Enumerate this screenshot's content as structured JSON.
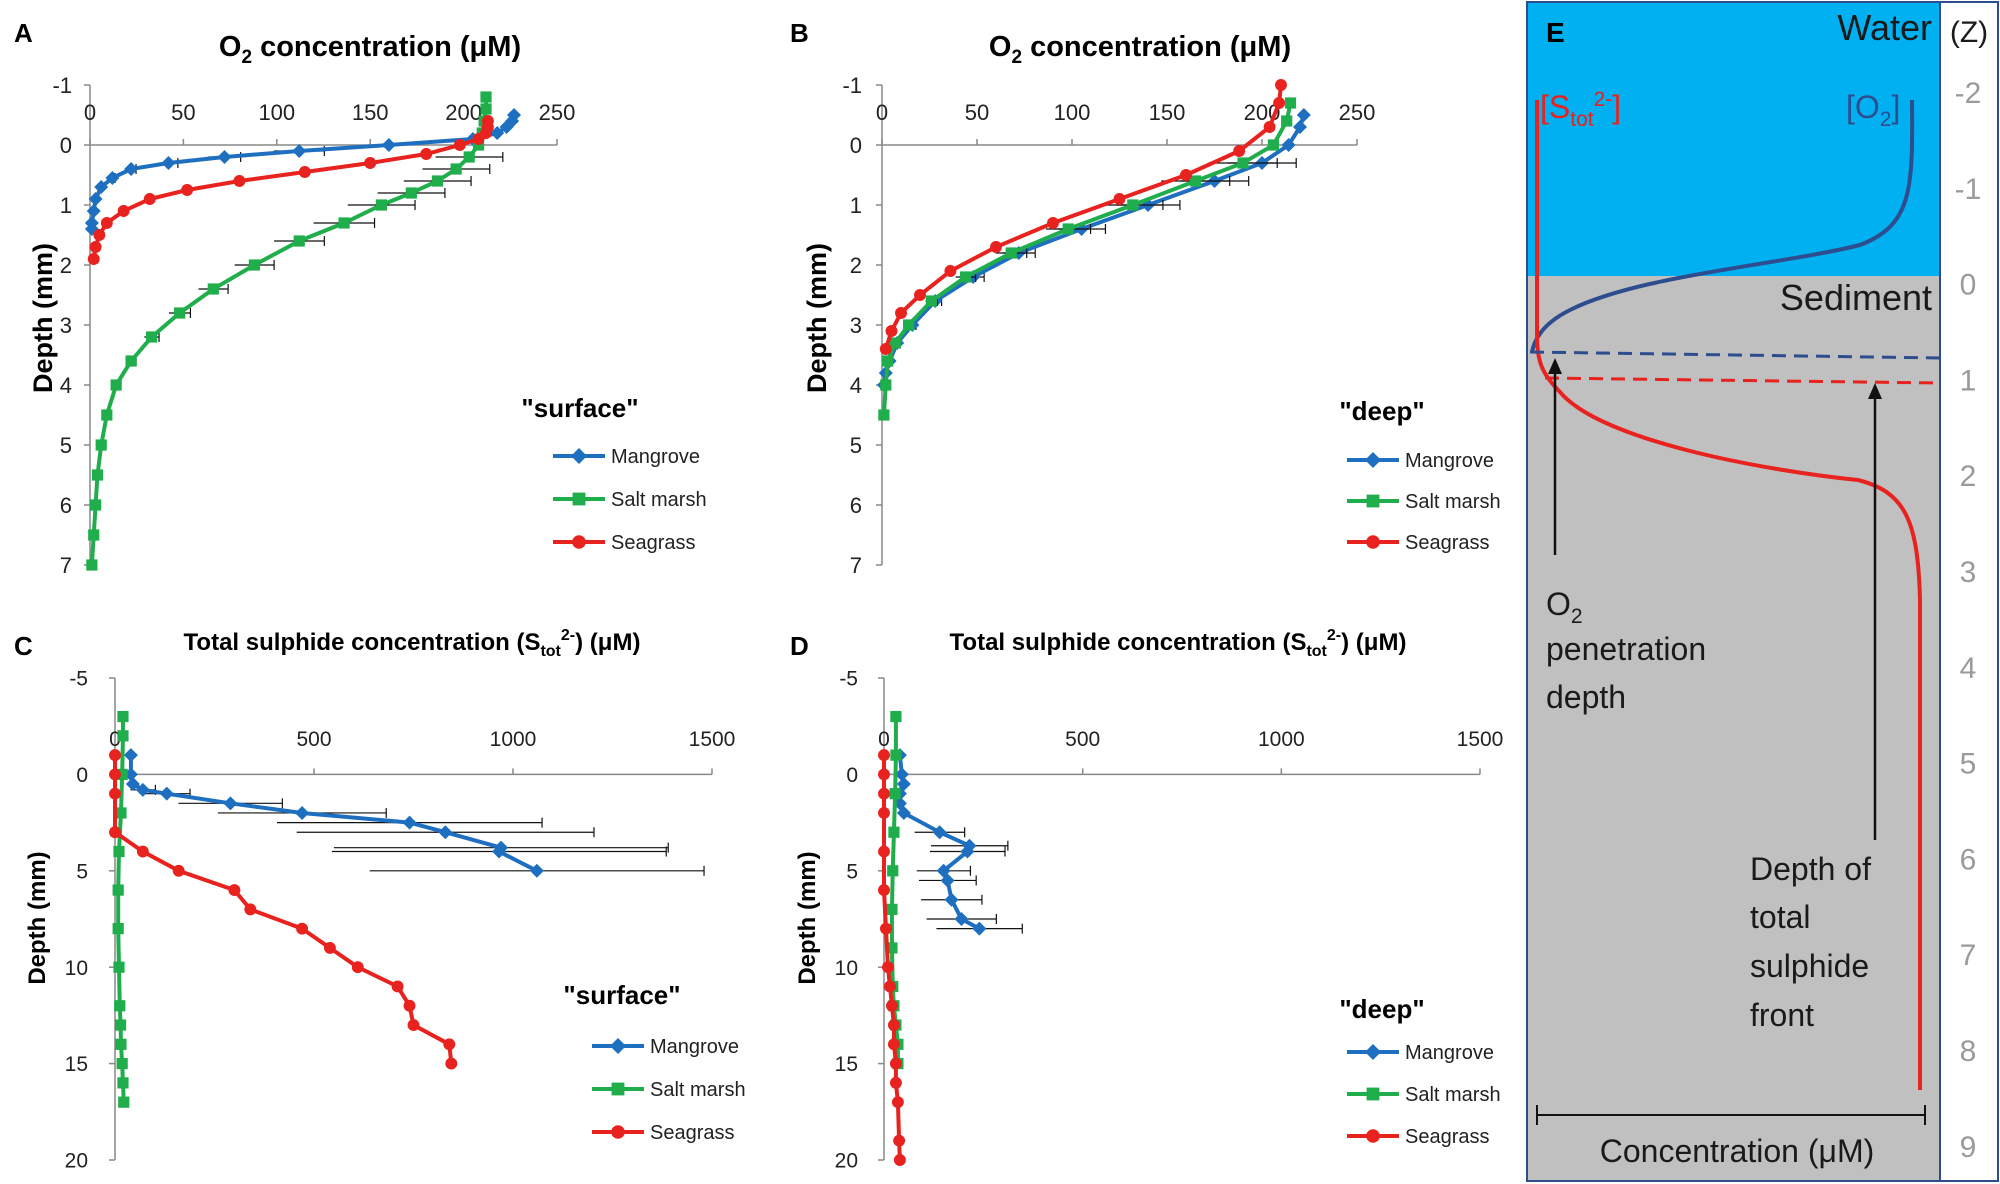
{
  "colors": {
    "mangrove": "#1f6fc1",
    "saltmarsh": "#1fae4b",
    "seagrass": "#e8221e",
    "water": "#00b0f0",
    "sediment": "#c0c0c0",
    "o2curve": "#2e4d8f",
    "label_red": "#e8221e",
    "label_blue": "#2e4d8f"
  },
  "chart_data": [
    {
      "id": "A",
      "panel_label": "A",
      "type": "line",
      "title_pre": "O",
      "title_sub": "2",
      "title_post": " concentration (μM)",
      "ylabel": "Depth (mm)",
      "xlim": [
        0,
        250
      ],
      "ylim": [
        -1,
        7
      ],
      "xticks": [
        0,
        50,
        100,
        150,
        200,
        250
      ],
      "yticks": [
        -1,
        0,
        1,
        2,
        3,
        4,
        5,
        6,
        7
      ],
      "legend_title": "\"surface\"",
      "series": [
        {
          "name": "Mangrove",
          "color": "#1f6fc1",
          "marker": "diamond",
          "x": [
            227,
            226,
            223,
            218,
            205,
            160,
            112,
            72,
            42,
            22,
            12,
            6,
            3,
            2,
            1,
            1
          ],
          "y": [
            -0.5,
            -0.4,
            -0.3,
            -0.2,
            -0.1,
            0,
            0.1,
            0.2,
            0.3,
            0.4,
            0.55,
            0.7,
            0.9,
            1.1,
            1.3,
            1.4
          ]
        },
        {
          "name": "Salt marsh",
          "color": "#1fae4b",
          "marker": "square",
          "x": [
            212,
            212,
            211,
            210,
            208,
            203,
            196,
            186,
            172,
            156,
            136,
            112,
            88,
            66,
            48,
            33,
            22,
            14,
            9,
            6,
            4,
            3,
            2,
            1
          ],
          "y": [
            -0.8,
            -0.6,
            -0.4,
            -0.2,
            0,
            0.2,
            0.4,
            0.6,
            0.8,
            1.0,
            1.3,
            1.6,
            2.0,
            2.4,
            2.8,
            3.2,
            3.6,
            4.0,
            4.5,
            5.0,
            5.5,
            6.0,
            6.5,
            7.0
          ]
        },
        {
          "name": "Seagrass",
          "color": "#e8221e",
          "marker": "circle",
          "x": [
            213,
            213,
            212,
            208,
            198,
            180,
            150,
            115,
            80,
            52,
            32,
            18,
            9,
            5,
            3,
            2
          ],
          "y": [
            -0.4,
            -0.3,
            -0.2,
            -0.1,
            0,
            0.15,
            0.3,
            0.45,
            0.6,
            0.75,
            0.9,
            1.1,
            1.3,
            1.5,
            1.7,
            1.9
          ]
        }
      ]
    },
    {
      "id": "B",
      "panel_label": "B",
      "type": "line",
      "title_pre": "O",
      "title_sub": "2",
      "title_post": " concentration (μM)",
      "ylabel": "Depth (mm)",
      "xlim": [
        0,
        250
      ],
      "ylim": [
        -1,
        7
      ],
      "xticks": [
        0,
        50,
        100,
        150,
        200,
        250
      ],
      "yticks": [
        -1,
        0,
        1,
        2,
        3,
        4,
        5,
        6,
        7
      ],
      "legend_title": "\"deep\"",
      "series": [
        {
          "name": "Mangrove",
          "color": "#1f6fc1",
          "marker": "diamond",
          "x": [
            222,
            220,
            214,
            200,
            175,
            140,
            105,
            72,
            48,
            28,
            16,
            8,
            4,
            2,
            1
          ],
          "y": [
            -0.5,
            -0.3,
            0,
            0.3,
            0.6,
            1.0,
            1.4,
            1.8,
            2.2,
            2.6,
            3.0,
            3.3,
            3.6,
            3.8,
            4.0
          ]
        },
        {
          "name": "Salt marsh",
          "color": "#1fae4b",
          "marker": "square",
          "x": [
            215,
            213,
            206,
            190,
            165,
            132,
            98,
            68,
            44,
            26,
            14,
            7,
            3,
            2,
            1
          ],
          "y": [
            -0.7,
            -0.4,
            0,
            0.3,
            0.6,
            1.0,
            1.4,
            1.8,
            2.2,
            2.6,
            3.0,
            3.3,
            3.6,
            4.0,
            4.5
          ]
        },
        {
          "name": "Seagrass",
          "color": "#e8221e",
          "marker": "circle",
          "x": [
            210,
            209,
            204,
            188,
            160,
            125,
            90,
            60,
            36,
            20,
            10,
            5,
            2
          ],
          "y": [
            -1.0,
            -0.7,
            -0.3,
            0.1,
            0.5,
            0.9,
            1.3,
            1.7,
            2.1,
            2.5,
            2.8,
            3.1,
            3.4
          ]
        }
      ]
    },
    {
      "id": "C",
      "panel_label": "C",
      "type": "line",
      "title_pre": "Total sulphide concentration (S",
      "title_sub": "tot",
      "title_sup": "2-",
      "title_post": ") (μM)",
      "ylabel": "Depth (mm)",
      "xlim": [
        0,
        1500
      ],
      "ylim": [
        -5,
        20
      ],
      "xticks": [
        0,
        500,
        1000,
        1500
      ],
      "yticks": [
        -5,
        0,
        5,
        10,
        15,
        20
      ],
      "legend_title": "\"surface\"",
      "series": [
        {
          "name": "Mangrove",
          "color": "#1f6fc1",
          "marker": "diamond",
          "x": [
            40,
            40,
            45,
            70,
            130,
            290,
            470,
            740,
            830,
            970,
            965,
            1060
          ],
          "y": [
            -1,
            0,
            0.5,
            0.8,
            1,
            1.5,
            2,
            2.5,
            3,
            3.8,
            4,
            5
          ]
        },
        {
          "name": "Salt marsh",
          "color": "#1fae4b",
          "marker": "square",
          "x": [
            20,
            20,
            18,
            15,
            10,
            8,
            8,
            10,
            12,
            14,
            15,
            18,
            20,
            22
          ],
          "y": [
            -3,
            -2,
            0,
            2,
            4,
            6,
            8,
            10,
            12,
            13,
            14,
            15,
            16,
            17
          ]
        },
        {
          "name": "Seagrass",
          "color": "#e8221e",
          "marker": "circle",
          "x": [
            0,
            0,
            0,
            0,
            70,
            160,
            300,
            340,
            470,
            540,
            610,
            710,
            740,
            750,
            840,
            845
          ],
          "y": [
            -1,
            0,
            1,
            3,
            4,
            5,
            6,
            7,
            8,
            9,
            10,
            11,
            12,
            13,
            14,
            15
          ]
        }
      ]
    },
    {
      "id": "D",
      "panel_label": "D",
      "type": "line",
      "title_pre": "Total sulphide concentration (S",
      "title_sub": "tot",
      "title_sup": "2-",
      "title_post": ") (μM)",
      "ylabel": "Depth (mm)",
      "xlim": [
        0,
        1500
      ],
      "ylim": [
        -5,
        20
      ],
      "xticks": [
        0,
        500,
        1000,
        1500
      ],
      "yticks": [
        -5,
        0,
        5,
        10,
        15,
        20
      ],
      "legend_title": "\"deep\"",
      "series": [
        {
          "name": "Mangrove",
          "color": "#1f6fc1",
          "marker": "diamond",
          "x": [
            40,
            45,
            50,
            40,
            40,
            50,
            140,
            215,
            210,
            150,
            160,
            170,
            195,
            240
          ],
          "y": [
            -1,
            0,
            0.5,
            1,
            1.5,
            2,
            3,
            3.7,
            4,
            5,
            5.5,
            6.5,
            7.5,
            8
          ]
        },
        {
          "name": "Salt marsh",
          "color": "#1fae4b",
          "marker": "square",
          "x": [
            30,
            30,
            28,
            25,
            22,
            20,
            20,
            22,
            25,
            30,
            35,
            35
          ],
          "y": [
            -3,
            -1,
            1,
            3,
            5,
            7,
            9,
            11,
            12,
            13,
            14,
            15
          ]
        },
        {
          "name": "Seagrass",
          "color": "#e8221e",
          "marker": "circle",
          "x": [
            0,
            0,
            0,
            0,
            0,
            0,
            5,
            10,
            15,
            20,
            25,
            25,
            30,
            30,
            35,
            38,
            40
          ],
          "y": [
            -1,
            0,
            1,
            2,
            4,
            6,
            8,
            10,
            11,
            12,
            13,
            14,
            15,
            16,
            17,
            19,
            20
          ]
        }
      ]
    },
    {
      "id": "E",
      "panel_label": "E",
      "type": "schematic",
      "water_label": "Water",
      "sediment_label": "Sediment",
      "z_label": "(Z)",
      "z_ticks": [
        -2,
        -1,
        0,
        1,
        2,
        3,
        4,
        5,
        6,
        7,
        8,
        9
      ],
      "s_label_open": "[S",
      "s_label_sub": "tot",
      "s_label_sup": "2-",
      "s_label_close": "]",
      "o2_label_open": "[O",
      "o2_label_sub": "2",
      "o2_label_close": "]",
      "o2_depth_pre": "O",
      "o2_depth_sub": "2",
      "o2_depth_lines": [
        "penetration",
        "depth"
      ],
      "sulphide_front_lines": [
        "Depth of",
        "total",
        "sulphide",
        "front"
      ],
      "xlabel": "Concentration (μM)"
    }
  ]
}
